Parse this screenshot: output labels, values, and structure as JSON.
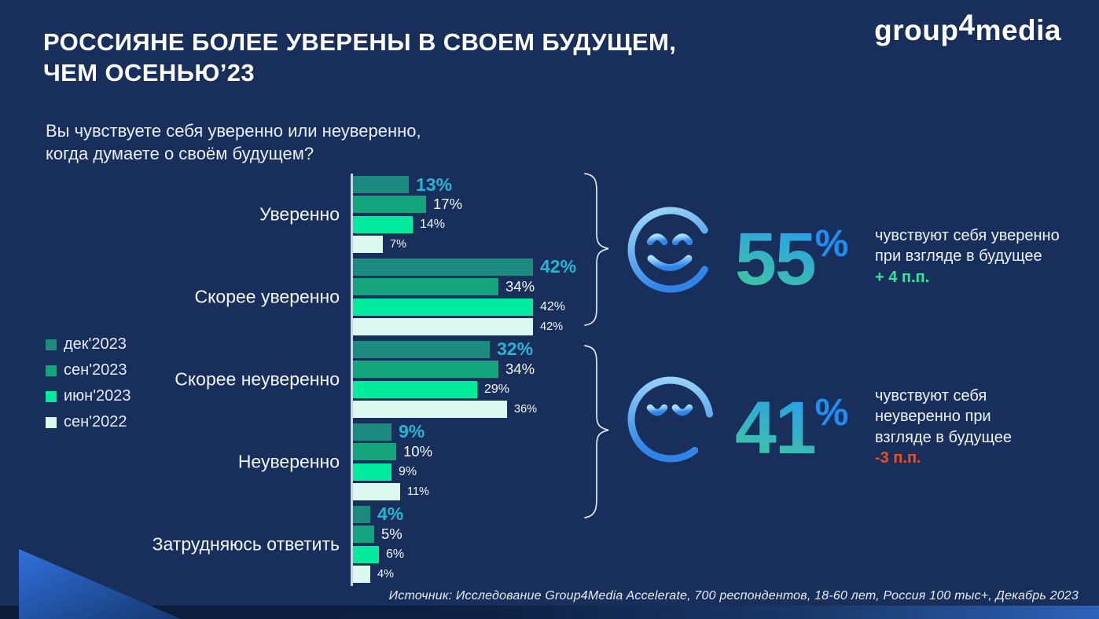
{
  "slide": {
    "title": {
      "line1": "РОССИЯНЕ БОЛЕЕ УВЕРЕНЫ В СВОЕМ БУДУЩЕМ,",
      "line2": "ЧЕМ ОСЕНЬЮ’23"
    },
    "logo": {
      "pre": "group",
      "num": "4",
      "post": "media"
    },
    "question": {
      "line1": "Вы чувствуете себя уверенно или неуверенно,",
      "line2": "когда думаете о своём будущем?"
    },
    "source": "Источник: Исследование Group4Media Accelerate, 700 респондентов, 18-60 лет, Россия 100 тыс+, Декабрь 2023"
  },
  "chart_data": {
    "type": "bar",
    "orientation": "horizontal",
    "title": "Вы чувствуете себя уверенно или неуверенно, когда думаете о своём будущем?",
    "value_suffix": "%",
    "xlim": [
      0,
      50
    ],
    "grid": false,
    "legend_position": "left",
    "categories": [
      "Уверенно",
      "Скорее уверенно",
      "Скорее неуверенно",
      "Неуверенно",
      "Затрудняюсь ответить"
    ],
    "series": [
      {
        "name": "дек'2023",
        "color": "#1d8a7f",
        "values": [
          13,
          42,
          32,
          9,
          4
        ]
      },
      {
        "name": "сен'2023",
        "color": "#14a57d",
        "values": [
          17,
          34,
          34,
          10,
          5
        ]
      },
      {
        "name": "июн'2023",
        "color": "#00eb9e",
        "values": [
          14,
          42,
          29,
          9,
          6
        ]
      },
      {
        "name": "сен'2022",
        "color": "#ddf8ee",
        "values": [
          7,
          42,
          36,
          11,
          4
        ]
      }
    ],
    "highlight_series": "дек'2023",
    "highlight_label_color": "#29b4d0"
  },
  "summaries": [
    {
      "icon": "happy-face",
      "value": "55",
      "suffix": "%",
      "lines": [
        "чувствуют себя уверенно",
        "при взгляде в будущее"
      ],
      "delta": "+ 4 п.п.",
      "delta_color": "#35e6a0"
    },
    {
      "icon": "neutral-face",
      "value": "41",
      "suffix": "%",
      "lines": [
        "чувствуют себя",
        "неуверенно при",
        "взгляде в будущее"
      ],
      "delta": "-3 п.п.",
      "delta_color": "#e8502c"
    }
  ]
}
